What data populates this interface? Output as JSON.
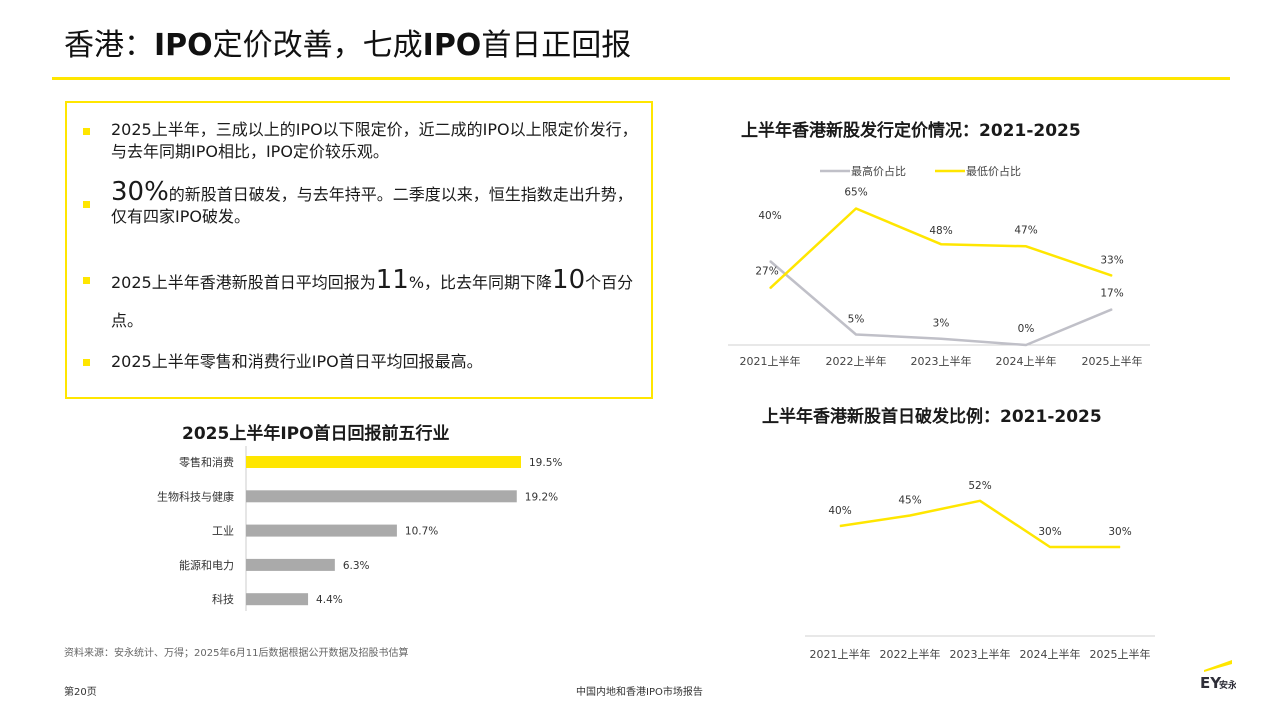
{
  "header": {
    "title_pre": "香港：",
    "title_ipo1": "IPO",
    "title_mid": "定价改善，七成",
    "title_ipo2": "IPO",
    "title_post": "首日正回报"
  },
  "summary": {
    "b1": "2025上半年，三成以上的IPO以下限定价，近二成的IPO以上限定价发行，与去年同期IPO相比，IPO定价较乐观。",
    "b2_big": "30%",
    "b2_rest": "的新股首日破发，与去年持平。二季度以来，恒生指数走出升势，仅有四家IPO破发。",
    "b3_pre": "2025上半年香港新股首日平均回报为",
    "b3_big1": "11",
    "b3_mid": "%，比去年同期下降",
    "b3_big2": "10",
    "b3_post": "个百分点。",
    "b4": "2025上半年零售和消费行业IPO首日平均回报最高。"
  },
  "footer": {
    "source": "资料来源：安永统计、万得；2025年6月11后数据根据公开数据及招股书估算",
    "page": "第20页",
    "report": "中国内地和香港IPO市场报告",
    "logo_text": "EY",
    "logo_sub": "安永"
  },
  "chart_data": [
    {
      "type": "bar",
      "title": "2025上半年IPO首日回报前五行业",
      "categories": [
        "零售和消费",
        "生物科技与健康",
        "工业",
        "能源和电力",
        "科技"
      ],
      "values": [
        19.5,
        19.2,
        10.7,
        6.3,
        4.4
      ],
      "value_labels": [
        "19.5%",
        "19.2%",
        "10.7%",
        "6.3%",
        "4.4%"
      ],
      "orientation": "horizontal",
      "colors": [
        "#ffe600",
        "#aaaaaa",
        "#aaaaaa",
        "#aaaaaa",
        "#aaaaaa"
      ],
      "xlim": [
        0,
        25
      ]
    },
    {
      "type": "line",
      "title": "上半年香港新股发行定价情况：2021-2025",
      "categories": [
        "2021上半年",
        "2022上半年",
        "2023上半年",
        "2024上半年",
        "2025上半年"
      ],
      "series": [
        {
          "name": "最高价占比",
          "values": [
            40,
            5,
            3,
            0,
            17
          ],
          "labels": [
            "40%",
            "5%",
            "3%",
            "0%",
            "17%"
          ],
          "color": "#c0c0c8"
        },
        {
          "name": "最低价占比",
          "values": [
            27,
            65,
            48,
            47,
            33
          ],
          "labels": [
            "27%",
            "65%",
            "48%",
            "47%",
            "33%"
          ],
          "color": "#ffe600"
        }
      ],
      "legend": "top",
      "ylim": [
        0,
        70
      ]
    },
    {
      "type": "line",
      "title": "上半年香港新股首日破发比例：2021-2025",
      "categories": [
        "2021上半年",
        "2022上半年",
        "2023上半年",
        "2024上半年",
        "2025上半年"
      ],
      "series": [
        {
          "values": [
            40,
            45,
            52,
            30,
            30
          ],
          "labels": [
            "40%",
            "45%",
            "52%",
            "30%",
            "30%"
          ],
          "color": "#ffe600"
        }
      ],
      "ylim": [
        0,
        80
      ]
    }
  ]
}
